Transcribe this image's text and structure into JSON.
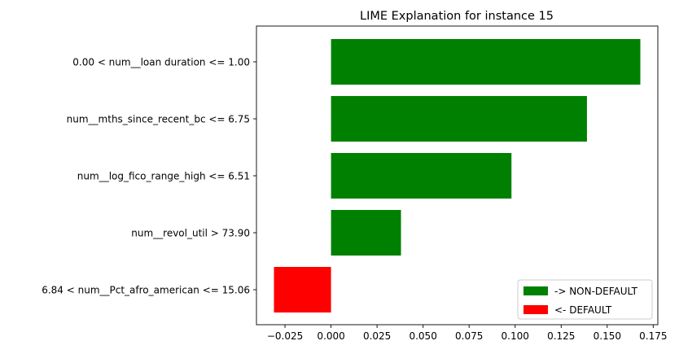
{
  "chart_data": {
    "type": "bar",
    "orientation": "horizontal",
    "title": "LIME Explanation for instance 15",
    "xlabel": "",
    "ylabel": "",
    "categories": [
      "0.00 < num__loan duration <= 1.00",
      "num__mths_since_recent_bc <= 6.75",
      "num__log_fico_range_high <= 6.51",
      "num__revol_util > 73.90",
      "6.84 < num__Pct_afro_american <= 15.06"
    ],
    "values": [
      0.168,
      0.139,
      0.098,
      0.038,
      -0.031
    ],
    "xlim": [
      -0.0405,
      0.1775
    ],
    "xticks": [
      -0.025,
      0.0,
      0.025,
      0.05,
      0.075,
      0.1,
      0.125,
      0.15,
      0.175
    ],
    "xtick_labels": [
      "−0.025",
      "0.000",
      "0.025",
      "0.050",
      "0.075",
      "0.100",
      "0.125",
      "0.150",
      "0.175"
    ],
    "grid": false,
    "legend": {
      "placement": "lower-right",
      "entries": [
        {
          "label": "-> NON-DEFAULT",
          "color": "#008000"
        },
        {
          "label": "<- DEFAULT",
          "color": "#ff0000"
        }
      ]
    },
    "colors": {
      "positive": "#008000",
      "negative": "#ff0000"
    }
  }
}
